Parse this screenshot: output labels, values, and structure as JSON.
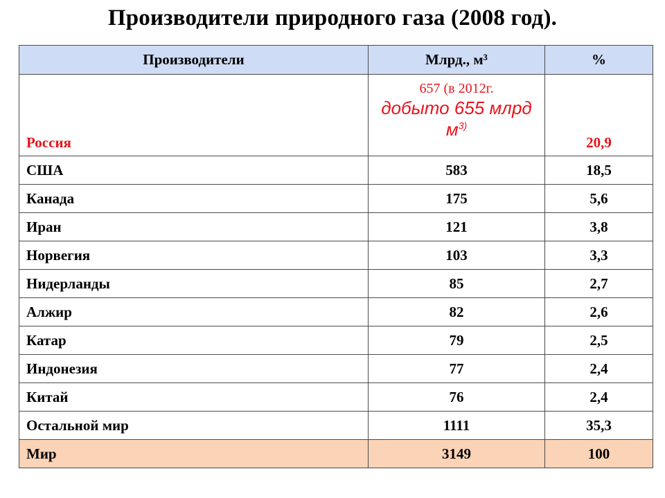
{
  "title": "Производители природного газа (2008 год).",
  "table": {
    "headers": {
      "producers": "Производители",
      "volume": "Млрд., м³",
      "percent": "%"
    },
    "russia": {
      "name": "Россия",
      "volume": "657 (в 2012г.",
      "note_main": "добыто 655 млрд м",
      "note_sup": "3)",
      "percent": "20,9"
    },
    "rows": [
      {
        "name": "США",
        "volume": "583",
        "percent": "18,5"
      },
      {
        "name": "Канада",
        "volume": "175",
        "percent": "5,6"
      },
      {
        "name": "Иран",
        "volume": "121",
        "percent": "3,8"
      },
      {
        "name": "Норвегия",
        "volume": "103",
        "percent": "3,3"
      },
      {
        "name": "Нидерланды",
        "volume": "85",
        "percent": "2,7"
      },
      {
        "name": "Алжир",
        "volume": "82",
        "percent": "2,6"
      },
      {
        "name": "Катар",
        "volume": "79",
        "percent": "2,5"
      },
      {
        "name": "Индонезия",
        "volume": "77",
        "percent": "2,4"
      },
      {
        "name": "Китай",
        "volume": "76",
        "percent": "2,4"
      },
      {
        "name": "Остальной мир",
        "volume": "1111",
        "percent": "35,3"
      }
    ],
    "total": {
      "name": "Мир",
      "volume": "3149",
      "percent": "100"
    }
  },
  "colors": {
    "header_bg": "#cfdcf5",
    "total_bg": "#fbd3b6",
    "russia_text": "#e8141c"
  }
}
